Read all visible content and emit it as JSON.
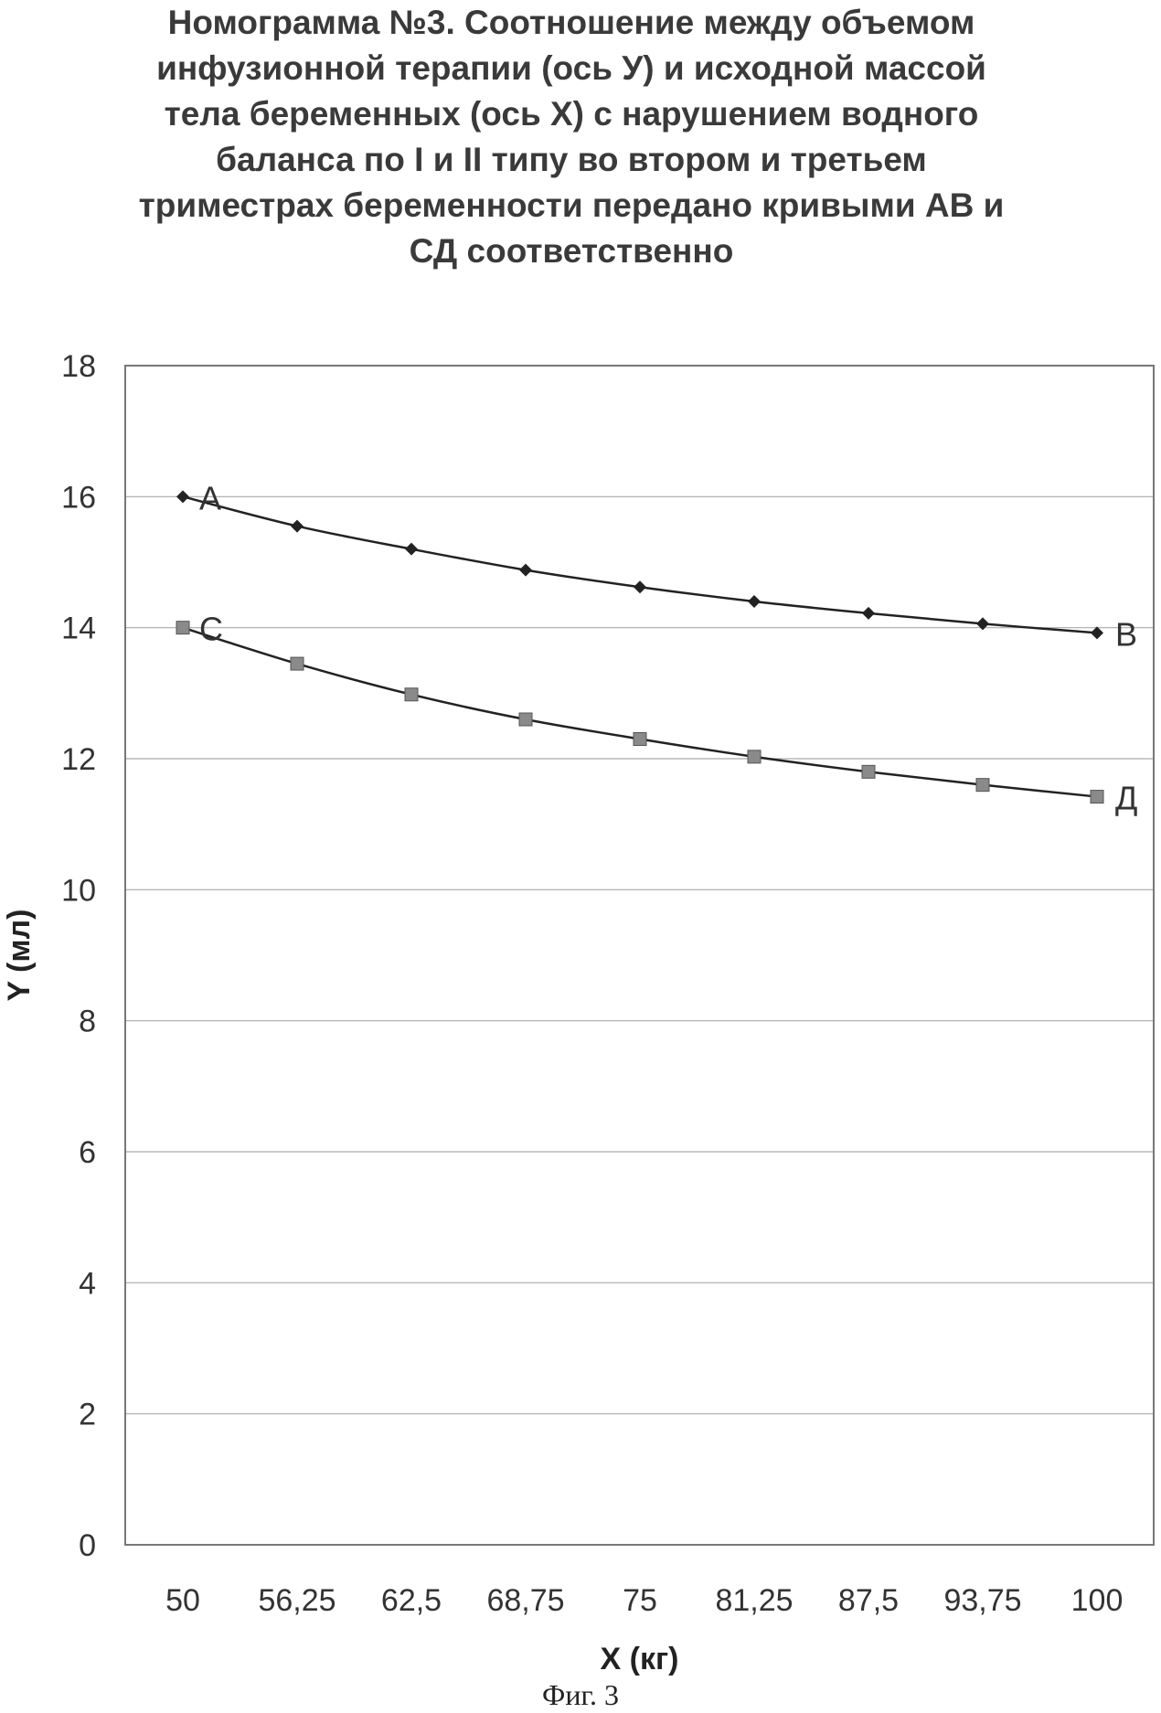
{
  "chart_data": {
    "type": "line",
    "title_lines": [
      "Номограмма №3. Соотношение между объемом",
      "инфузионной терапии (ось У) и исходной массой",
      "тела беременных (ось Х) с нарушением водного",
      "баланса по  I и II типу во втором и третьем",
      "триместрах беременности передано кривыми АВ и",
      "СД соответственно"
    ],
    "xlabel": "X (кг)",
    "ylabel": "Y (мл)",
    "categories": [
      "50",
      "56,25",
      "62,5",
      "68,75",
      "75",
      "81,25",
      "87,5",
      "93,75",
      "100"
    ],
    "ylim": [
      0,
      18
    ],
    "yticks": [
      "0",
      "2",
      "4",
      "6",
      "8",
      "10",
      "12",
      "14",
      "16",
      "18"
    ],
    "grid": true,
    "series": [
      {
        "values": [
          16.0,
          15.55,
          15.2,
          14.88,
          14.62,
          14.4,
          14.22,
          14.06,
          13.92
        ],
        "marker": "diamond",
        "color": "#222222",
        "start_label": "A",
        "end_label": "B"
      },
      {
        "values": [
          14.0,
          13.45,
          12.98,
          12.6,
          12.3,
          12.03,
          11.8,
          11.6,
          11.42
        ],
        "marker": "square",
        "color": "#8a8a8a",
        "start_label": "C",
        "end_label": "Д"
      }
    ]
  },
  "caption": "Фиг. 3"
}
